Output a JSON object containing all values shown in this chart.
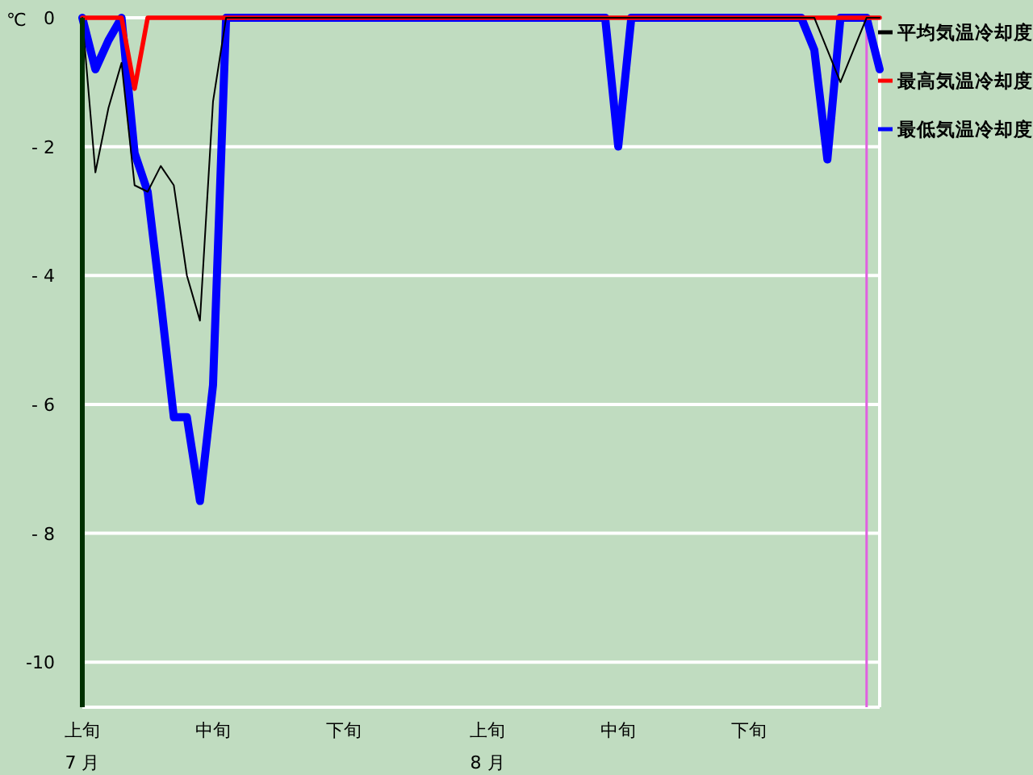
{
  "chart_data": {
    "type": "line",
    "ylabel": "℃",
    "x": [
      "--07-01",
      "--07-02",
      "--07-03",
      "--07-04",
      "--07-05",
      "--07-06",
      "--07-07",
      "--07-08",
      "--07-09",
      "--07-10",
      "--07-11",
      "--07-12",
      "--07-13",
      "--07-14",
      "--07-15",
      "--07-16",
      "--07-17",
      "--07-18",
      "--07-19",
      "--07-20",
      "--07-21",
      "--07-22",
      "--07-23",
      "--07-24",
      "--07-25",
      "--07-26",
      "--07-27",
      "--07-28",
      "--07-29",
      "--07-30",
      "--07-31",
      "--08-01",
      "--08-02",
      "--08-03",
      "--08-04",
      "--08-05",
      "--08-06",
      "--08-07",
      "--08-08",
      "--08-09",
      "--08-10",
      "--08-11",
      "--08-12",
      "--08-13",
      "--08-14",
      "--08-15",
      "--08-16",
      "--08-17",
      "--08-18",
      "--08-19",
      "--08-20",
      "--08-21",
      "--08-22",
      "--08-23",
      "--08-24",
      "--08-25",
      "--08-26",
      "--08-27",
      "--08-28",
      "--08-29",
      "--08-30",
      "--08-31"
    ],
    "series": [
      {
        "name": "平均気温冷却度",
        "color": "#000000",
        "values": [
          0,
          -2.4,
          -1.4,
          -0.7,
          -2.6,
          -2.7,
          -2.3,
          -2.6,
          -4.0,
          -4.7,
          -1.3,
          0,
          0,
          0,
          0,
          0,
          0,
          0,
          0,
          0,
          0,
          0,
          0,
          0,
          0,
          0,
          0,
          0,
          0,
          0,
          0,
          0,
          0,
          0,
          0,
          0,
          0,
          0,
          0,
          0,
          0,
          0,
          0,
          0,
          0,
          0,
          0,
          0,
          0,
          0,
          0,
          0,
          0,
          0,
          0,
          0,
          0,
          -0.5,
          -1.0,
          -0.5,
          0,
          0
        ]
      },
      {
        "name": "最高気温冷却度",
        "color": "#ff0000",
        "values": [
          0,
          0,
          0,
          0,
          -1.1,
          0,
          0,
          0,
          0,
          0,
          0,
          0,
          0,
          0,
          0,
          0,
          0,
          0,
          0,
          0,
          0,
          0,
          0,
          0,
          0,
          0,
          0,
          0,
          0,
          0,
          0,
          0,
          0,
          0,
          0,
          0,
          0,
          0,
          0,
          0,
          0,
          0,
          0,
          0,
          0,
          0,
          0,
          0,
          0,
          0,
          0,
          0,
          0,
          0,
          0,
          0,
          0,
          0,
          0,
          0,
          0,
          0
        ]
      },
      {
        "name": "最低気温冷却度",
        "color": "#0000ff",
        "values": [
          0,
          -0.8,
          -0.35,
          0,
          -2.1,
          -2.7,
          -4.4,
          -6.2,
          -6.2,
          -7.5,
          -5.7,
          0,
          0,
          0,
          0,
          0,
          0,
          0,
          0,
          0,
          0,
          0,
          0,
          0,
          0,
          0,
          0,
          0,
          0,
          0,
          0,
          0,
          0,
          0,
          0,
          0,
          0,
          0,
          0,
          0,
          0,
          -2.0,
          0,
          0,
          0,
          0,
          0,
          0,
          0,
          0,
          0,
          0,
          0,
          0,
          0,
          0,
          -0.5,
          -2.2,
          0,
          0,
          0,
          -0.8
        ]
      }
    ],
    "xlim": [
      "--07-01",
      "--08-31"
    ],
    "xticks": [
      {
        "value": "--07-01",
        "label": "上旬\n7 月"
      },
      {
        "value": "--07-11",
        "label": "中旬"
      },
      {
        "value": "--07-21",
        "label": "下旬"
      },
      {
        "value": "--08-01",
        "label": "上旬\n8 月"
      },
      {
        "value": "--08-11",
        "label": "中旬"
      },
      {
        "value": "--08-21",
        "label": "下旬"
      }
    ],
    "ylim": [
      -10.7,
      0
    ],
    "yticks": [
      0,
      {
        "value": -2,
        "label": "- 2"
      },
      {
        "value": -4,
        "label": "- 4"
      },
      {
        "value": -6,
        "label": "- 6"
      },
      {
        "value": -8,
        "label": "- 8"
      },
      {
        "value": -10,
        "label": "-10"
      }
    ],
    "ref_lines": [
      {
        "axis": "x",
        "value": "--08-30",
        "color": "#e060e0"
      }
    ],
    "grid": "y",
    "legend": "top right",
    "marker": "none",
    "line_style": "solid"
  }
}
